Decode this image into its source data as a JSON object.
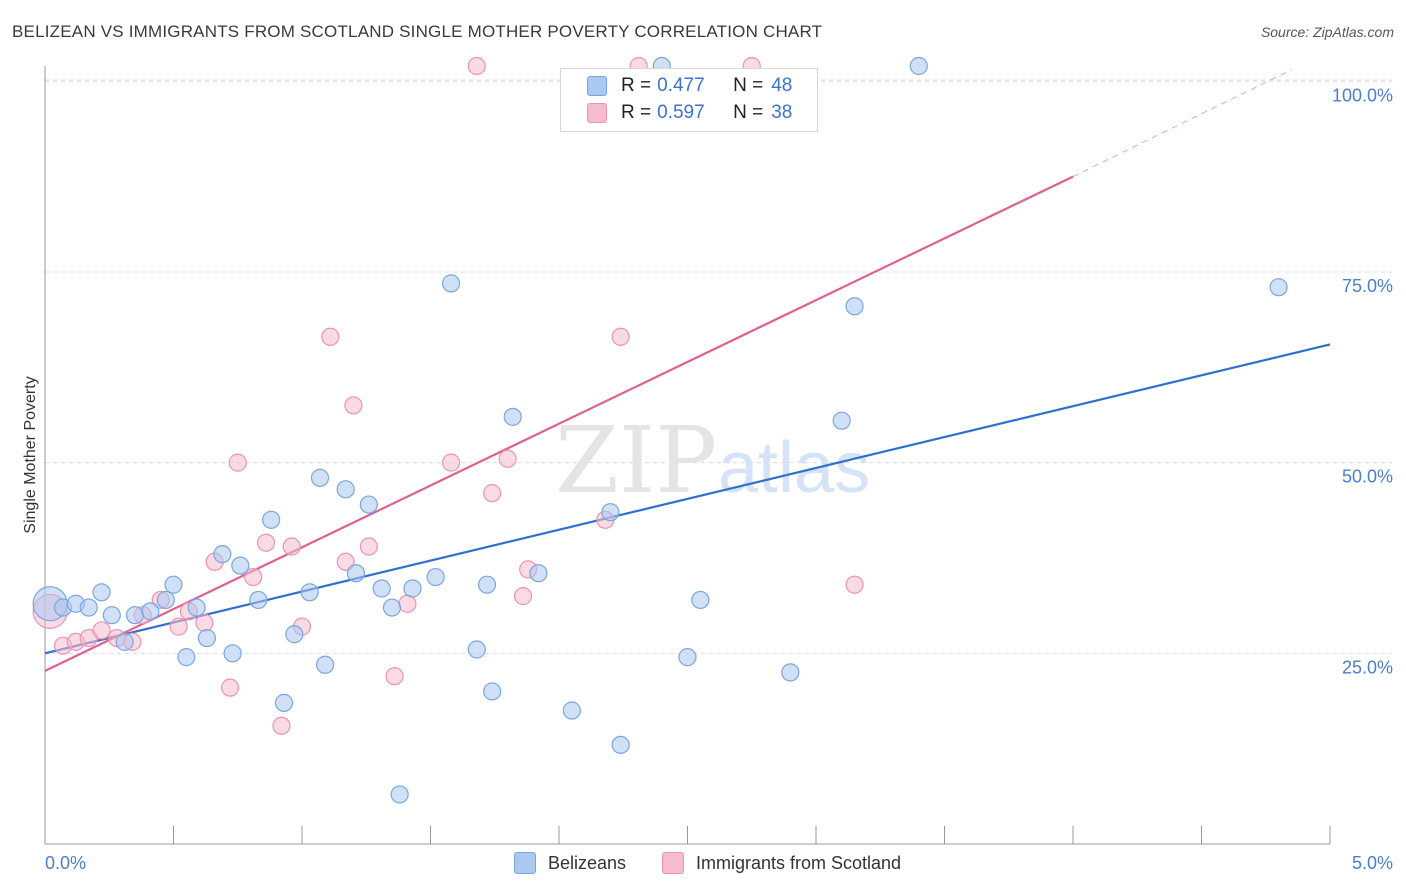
{
  "header": {
    "title": "BELIZEAN VS IMMIGRANTS FROM SCOTLAND SINGLE MOTHER POVERTY CORRELATION CHART",
    "source": "Source: ZipAtlas.com"
  },
  "watermark": {
    "zip": "ZIP",
    "atlas": "atlas"
  },
  "legend": {
    "rows": [
      {
        "r_label": "R =",
        "r_value": "0.477",
        "n_label": "N =",
        "n_value": "48"
      },
      {
        "r_label": "R =",
        "r_value": "0.597",
        "n_label": "N =",
        "n_value": "38"
      }
    ]
  },
  "bottom_legend": {
    "series_a": "Belizeans",
    "series_b": "Immigrants from Scotland"
  },
  "colors": {
    "blue_fill": "#aac8f0",
    "blue_stroke": "#7aa6e0",
    "blue_line": "#2e6fd0",
    "pink_fill": "#f6bccd",
    "pink_stroke": "#ee93b0",
    "pink_line": "#e0608e",
    "grid": "#dcdcdc",
    "tick_text": "#4a7fcf"
  },
  "chart_data": {
    "type": "scatter",
    "title": "BELIZEAN VS IMMIGRANTS FROM SCOTLAND SINGLE MOTHER POVERTY CORRELATION CHART",
    "xlabel": "",
    "ylabel": "Single Mother Poverty",
    "xlim": [
      0,
      5
    ],
    "ylim": [
      0,
      102
    ],
    "x_tick_labels": [
      "0.0%",
      "5.0%"
    ],
    "y_ticks": [
      25,
      50,
      75,
      100
    ],
    "y_tick_labels": [
      "25.0%",
      "50.0%",
      "75.0%",
      "100.0%"
    ],
    "grid": true,
    "legend_position": "top-center",
    "series": [
      {
        "name": "Belizeans",
        "color": "#aac8f0",
        "trend": {
          "x": [
            0,
            5
          ],
          "y": [
            25.0,
            65.5
          ]
        },
        "points": [
          {
            "x": 0.02,
            "y": 31.5,
            "size": "large"
          },
          {
            "x": 0.07,
            "y": 31
          },
          {
            "x": 0.12,
            "y": 31.5
          },
          {
            "x": 0.17,
            "y": 31
          },
          {
            "x": 0.22,
            "y": 33
          },
          {
            "x": 0.26,
            "y": 30
          },
          {
            "x": 0.31,
            "y": 26.5
          },
          {
            "x": 0.35,
            "y": 30
          },
          {
            "x": 0.41,
            "y": 30.5
          },
          {
            "x": 0.47,
            "y": 32
          },
          {
            "x": 0.5,
            "y": 34
          },
          {
            "x": 0.55,
            "y": 24.5
          },
          {
            "x": 0.59,
            "y": 31
          },
          {
            "x": 0.63,
            "y": 27
          },
          {
            "x": 0.69,
            "y": 38
          },
          {
            "x": 0.73,
            "y": 25
          },
          {
            "x": 0.76,
            "y": 36.5
          },
          {
            "x": 0.83,
            "y": 32
          },
          {
            "x": 0.88,
            "y": 42.5
          },
          {
            "x": 0.93,
            "y": 18.5
          },
          {
            "x": 0.97,
            "y": 27.5
          },
          {
            "x": 1.03,
            "y": 33
          },
          {
            "x": 1.07,
            "y": 48
          },
          {
            "x": 1.09,
            "y": 23.5
          },
          {
            "x": 1.17,
            "y": 46.5
          },
          {
            "x": 1.21,
            "y": 35.5
          },
          {
            "x": 1.26,
            "y": 44.5
          },
          {
            "x": 1.31,
            "y": 33.5
          },
          {
            "x": 1.35,
            "y": 31
          },
          {
            "x": 1.38,
            "y": 6.5
          },
          {
            "x": 1.43,
            "y": 33.5
          },
          {
            "x": 1.52,
            "y": 35
          },
          {
            "x": 1.58,
            "y": 73.5
          },
          {
            "x": 1.68,
            "y": 25.5
          },
          {
            "x": 1.72,
            "y": 34
          },
          {
            "x": 1.74,
            "y": 20
          },
          {
            "x": 1.82,
            "y": 56
          },
          {
            "x": 1.92,
            "y": 35.5
          },
          {
            "x": 2.05,
            "y": 17.5
          },
          {
            "x": 2.2,
            "y": 43.5
          },
          {
            "x": 2.24,
            "y": 13
          },
          {
            "x": 2.4,
            "y": 102
          },
          {
            "x": 2.5,
            "y": 24.5
          },
          {
            "x": 2.55,
            "y": 32
          },
          {
            "x": 2.9,
            "y": 22.5
          },
          {
            "x": 3.1,
            "y": 55.5
          },
          {
            "x": 3.15,
            "y": 70.5
          },
          {
            "x": 3.4,
            "y": 102
          },
          {
            "x": 4.8,
            "y": 73
          }
        ]
      },
      {
        "name": "Immigrants from Scotland",
        "color": "#f6bccd",
        "trend": {
          "x": [
            0,
            4.0
          ],
          "y": [
            22.7,
            87.5
          ],
          "dashed_extension_to": {
            "x": 4.85,
            "y": 101.5
          }
        },
        "points": [
          {
            "x": 0.02,
            "y": 30.5,
            "size": "large"
          },
          {
            "x": 0.07,
            "y": 26
          },
          {
            "x": 0.12,
            "y": 26.5
          },
          {
            "x": 0.17,
            "y": 27
          },
          {
            "x": 0.22,
            "y": 28
          },
          {
            "x": 0.28,
            "y": 27
          },
          {
            "x": 0.34,
            "y": 26.5
          },
          {
            "x": 0.38,
            "y": 30
          },
          {
            "x": 0.45,
            "y": 32
          },
          {
            "x": 0.52,
            "y": 28.5
          },
          {
            "x": 0.56,
            "y": 30.5
          },
          {
            "x": 0.62,
            "y": 29
          },
          {
            "x": 0.66,
            "y": 37
          },
          {
            "x": 0.72,
            "y": 20.5
          },
          {
            "x": 0.75,
            "y": 50
          },
          {
            "x": 0.81,
            "y": 35
          },
          {
            "x": 0.86,
            "y": 39.5
          },
          {
            "x": 0.92,
            "y": 15.5
          },
          {
            "x": 0.96,
            "y": 39
          },
          {
            "x": 1.0,
            "y": 28.5
          },
          {
            "x": 1.11,
            "y": 66.5
          },
          {
            "x": 1.17,
            "y": 37
          },
          {
            "x": 1.2,
            "y": 57.5
          },
          {
            "x": 1.26,
            "y": 39
          },
          {
            "x": 1.36,
            "y": 22
          },
          {
            "x": 1.41,
            "y": 31.5
          },
          {
            "x": 1.58,
            "y": 50
          },
          {
            "x": 1.68,
            "y": 102
          },
          {
            "x": 1.74,
            "y": 46
          },
          {
            "x": 1.8,
            "y": 50.5
          },
          {
            "x": 1.86,
            "y": 32.5
          },
          {
            "x": 1.88,
            "y": 36
          },
          {
            "x": 2.18,
            "y": 42.5
          },
          {
            "x": 2.24,
            "y": 66.5
          },
          {
            "x": 2.31,
            "y": 102
          },
          {
            "x": 2.75,
            "y": 102
          },
          {
            "x": 3.15,
            "y": 34
          }
        ]
      }
    ]
  }
}
